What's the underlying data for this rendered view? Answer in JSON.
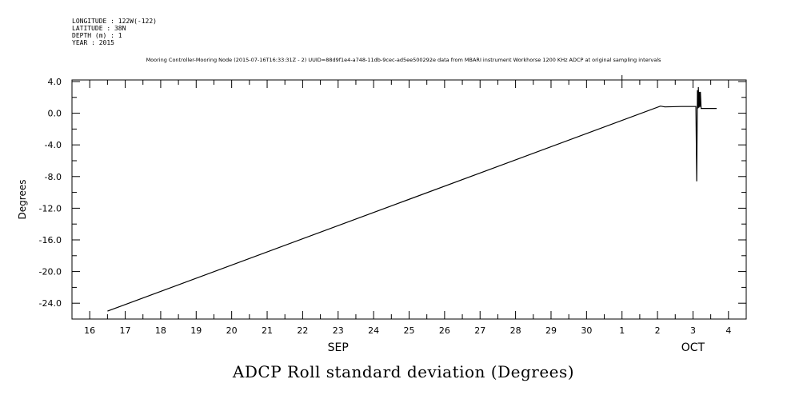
{
  "header": {
    "longitude": "LONGITUDE : 122W(-122)",
    "latitude": "LATITUDE : 38N",
    "depth": "DEPTH (m) : 1",
    "year": "YEAR : 2015",
    "subtitle": "Mooring Controller-Mooring Node (2015-07-16T16:33:31Z - 2) UUID=88d9f1e4-a748-11db-9cec-ad5ee500292e data from MBARI instrument Workhorse 1200 KHz ADCP at original sampling intervals"
  },
  "chart_data": {
    "type": "line",
    "title": "ADCP Roll standard deviation (Degrees)",
    "ylabel": "Degrees",
    "xlabel": "",
    "ylim": [
      -26,
      4.2
    ],
    "yticks": [
      4.0,
      0.0,
      -4.0,
      -8.0,
      -12.0,
      -16.0,
      -20.0,
      -24.0
    ],
    "ytick_labels": [
      "4.0",
      "0.0",
      "-4.0",
      "-8.0",
      "-12.0",
      "-16.0",
      "-20.0",
      "-24.0"
    ],
    "xlim": [
      "2015-09-15T12:00",
      "2015-10-04T12:00"
    ],
    "x_day_labels": [
      {
        "date": "2015-09-16",
        "label": "16"
      },
      {
        "date": "2015-09-17",
        "label": "17"
      },
      {
        "date": "2015-09-18",
        "label": "18"
      },
      {
        "date": "2015-09-19",
        "label": "19"
      },
      {
        "date": "2015-09-20",
        "label": "20"
      },
      {
        "date": "2015-09-21",
        "label": "21"
      },
      {
        "date": "2015-09-22",
        "label": "22"
      },
      {
        "date": "2015-09-23",
        "label": "23"
      },
      {
        "date": "2015-09-24",
        "label": "24"
      },
      {
        "date": "2015-09-25",
        "label": "25"
      },
      {
        "date": "2015-09-26",
        "label": "26"
      },
      {
        "date": "2015-09-27",
        "label": "27"
      },
      {
        "date": "2015-09-28",
        "label": "28"
      },
      {
        "date": "2015-09-29",
        "label": "29"
      },
      {
        "date": "2015-09-30",
        "label": "30"
      },
      {
        "date": "2015-10-01",
        "label": "1"
      },
      {
        "date": "2015-10-02",
        "label": "2"
      },
      {
        "date": "2015-10-03",
        "label": "3"
      },
      {
        "date": "2015-10-04",
        "label": "4"
      }
    ],
    "x_month_labels": [
      {
        "date": "2015-09-23",
        "label": "SEP"
      },
      {
        "date": "2015-10-03",
        "label": "OCT"
      }
    ],
    "grid": false,
    "series": [
      {
        "color": "#000000",
        "points": [
          [
            "2015-09-16T12:00",
            -25.0
          ],
          [
            "2015-10-02T02:00",
            0.9
          ],
          [
            "2015-10-02T05:00",
            0.8
          ],
          [
            "2015-10-02T16:00",
            0.85
          ],
          [
            "2015-10-03T02:00",
            0.85
          ],
          [
            "2015-10-03T02:30",
            -8.6
          ],
          [
            "2015-10-03T03:00",
            2.9
          ],
          [
            "2015-10-03T03:20",
            0.6
          ],
          [
            "2015-10-03T03:40",
            3.3
          ],
          [
            "2015-10-03T04:00",
            0.7
          ],
          [
            "2015-10-03T04:20",
            2.7
          ],
          [
            "2015-10-03T04:40",
            0.8
          ],
          [
            "2015-10-03T05:00",
            2.7
          ],
          [
            "2015-10-03T05:30",
            0.6
          ],
          [
            "2015-10-03T06:00",
            0.6
          ],
          [
            "2015-10-03T16:00",
            0.6
          ]
        ]
      }
    ]
  }
}
